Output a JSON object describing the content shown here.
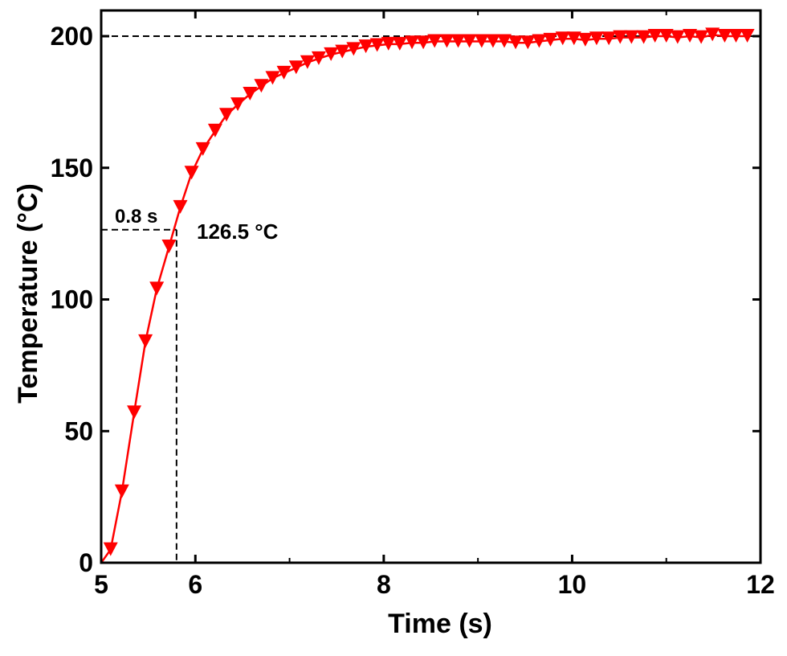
{
  "chart_data": {
    "type": "line",
    "xlabel": "Time (s)",
    "ylabel": "Temperature (°C)",
    "xlim": [
      5,
      12
    ],
    "ylim": [
      0,
      210
    ],
    "x_ticks": [
      5,
      6,
      8,
      10,
      12
    ],
    "x_minor_ticks": [
      7,
      9,
      11
    ],
    "y_ticks": [
      0,
      50,
      100,
      150,
      200
    ],
    "grid": false,
    "marker": "triangle-down",
    "color": "#ff0000",
    "series": [
      {
        "x": [
          5.1,
          5.22,
          5.35,
          5.47,
          5.59,
          5.72,
          5.84,
          5.96,
          6.08,
          6.21,
          6.33,
          6.45,
          6.58,
          6.7,
          6.82,
          6.94,
          7.07,
          7.19,
          7.31,
          7.44,
          7.56,
          7.68,
          7.81,
          7.93,
          8.05,
          8.17,
          8.3,
          8.42,
          8.54,
          8.67,
          8.79,
          8.91,
          9.04,
          9.16,
          9.28,
          9.4,
          9.53,
          9.65,
          9.77,
          9.9,
          10.02,
          10.14,
          10.26,
          10.39,
          10.51,
          10.63,
          10.76,
          10.88,
          11.0,
          11.12,
          11.25,
          11.37,
          11.49,
          11.62,
          11.74,
          11.86
        ],
        "y": [
          5,
          27,
          57,
          84,
          104,
          120,
          135,
          148,
          157,
          164,
          170,
          174,
          178,
          181,
          184,
          186,
          188,
          190,
          191.5,
          193,
          194,
          195,
          196,
          196.5,
          197,
          197,
          197.5,
          197.5,
          198,
          198,
          198,
          198,
          198,
          198,
          198,
          197.5,
          197.5,
          198,
          198.5,
          199,
          199,
          198.5,
          199,
          199,
          199.5,
          199.5,
          199.5,
          200,
          200,
          199.5,
          200,
          199.5,
          200.5,
          200,
          200,
          200
        ]
      }
    ],
    "reference_lines": {
      "horizontal_y": 200,
      "marker_x": 5.8,
      "marker_y": 126.5
    },
    "annotations": {
      "time_label": "0.8 s",
      "temp_label": "126.5 °C"
    }
  }
}
